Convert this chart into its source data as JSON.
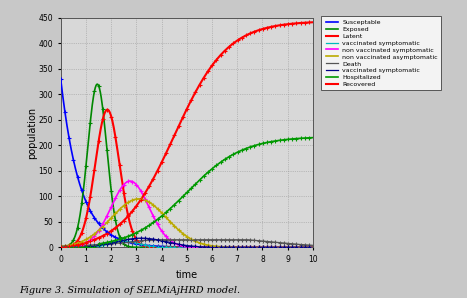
{
  "title": "",
  "xlabel": "time",
  "ylabel": "population",
  "xlim": [
    0,
    10
  ],
  "ylim": [
    0,
    450
  ],
  "yticks": [
    0,
    50,
    100,
    150,
    200,
    250,
    300,
    350,
    400,
    450
  ],
  "xticks": [
    0,
    1,
    2,
    3,
    4,
    5,
    6,
    7,
    8,
    9,
    10
  ],
  "caption": "Figure 3. Simulation of SELMiAjHRD model.",
  "bg_color": "#C8C8C8",
  "plot_bg": "#D8D8D8",
  "legend_labels": [
    "Susceptable",
    "Exposed",
    "Latent",
    "vaccinated symptomatic",
    "non vaccinated symptomatic",
    "non vaccinated asymptomatic",
    "Death",
    "vaccinated symptomatic",
    "Hospitalized",
    "Recovered"
  ],
  "legend_colors": [
    "#0000FF",
    "#008800",
    "#FF0000",
    "#00CCCC",
    "#FF00FF",
    "#CCAA00",
    "#333333",
    "#000080",
    "#008800",
    "#FF0000"
  ]
}
